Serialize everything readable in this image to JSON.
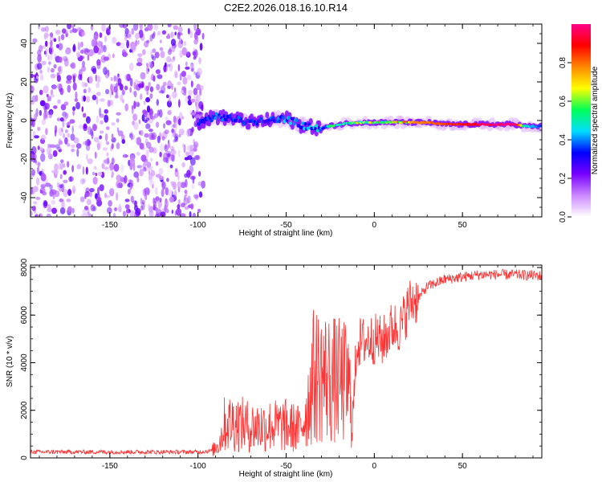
{
  "title": "C2E2.2026.018.16.10.R14",
  "chart_data": [
    {
      "type": "heatmap",
      "xlabel": "Height of straight line (km)",
      "ylabel": "Frequency (Hz)",
      "xlim": [
        -195,
        95
      ],
      "ylim": [
        -50,
        50
      ],
      "xticks": [
        -150,
        -100,
        -50,
        0,
        50
      ],
      "yticks": [
        -40,
        -20,
        0,
        20,
        40
      ],
      "xtick_labels": [
        "-150",
        "-100",
        "-50",
        "0",
        "50"
      ],
      "ytick_labels": [
        "-40",
        "-20",
        "0",
        "20",
        "40"
      ],
      "noise_region_x": [
        -195,
        -100
      ],
      "signal_track": [
        {
          "x": -100,
          "freq": -1,
          "amp": 0.3
        },
        {
          "x": -90,
          "freq": 2,
          "amp": 0.35
        },
        {
          "x": -80,
          "freq": 1,
          "amp": 0.35
        },
        {
          "x": -70,
          "freq": -1,
          "amp": 0.3
        },
        {
          "x": -60,
          "freq": 0,
          "amp": 0.35
        },
        {
          "x": -50,
          "freq": 1,
          "amp": 0.4
        },
        {
          "x": -40,
          "freq": -3,
          "amp": 0.4
        },
        {
          "x": -30,
          "freq": -4,
          "amp": 0.45
        },
        {
          "x": -20,
          "freq": -2,
          "amp": 0.5
        },
        {
          "x": -10,
          "freq": -1,
          "amp": 0.6
        },
        {
          "x": 0,
          "freq": -1,
          "amp": 0.65
        },
        {
          "x": 10,
          "freq": -1,
          "amp": 0.7
        },
        {
          "x": 20,
          "freq": -1,
          "amp": 0.75
        },
        {
          "x": 30,
          "freq": -1,
          "amp": 0.8
        },
        {
          "x": 40,
          "freq": -2,
          "amp": 0.85
        },
        {
          "x": 50,
          "freq": -2,
          "amp": 0.9
        },
        {
          "x": 60,
          "freq": -2,
          "amp": 0.95
        },
        {
          "x": 70,
          "freq": -2,
          "amp": 1.0
        },
        {
          "x": 80,
          "freq": -2,
          "amp": 1.0
        },
        {
          "x": 85,
          "freq": -3,
          "amp": 0.5
        },
        {
          "x": 95,
          "freq": -3,
          "amp": 0.35
        }
      ],
      "colorbar": {
        "label": "Normalized spectral amplitude",
        "range": [
          0,
          1
        ],
        "ticks": [
          0,
          0.2,
          0.4,
          0.6,
          0.8
        ],
        "tick_labels": [
          "0.0",
          "0.2",
          "0.4",
          "0.6",
          "0.8"
        ],
        "colors": [
          "#ffffff",
          "#cc88ff",
          "#7700ff",
          "#0000ff",
          "#00ddff",
          "#00ff55",
          "#ffff00",
          "#ff8800",
          "#ff0000",
          "#ff0088"
        ]
      }
    },
    {
      "type": "line",
      "xlabel": "Height of straight line (km)",
      "ylabel": "SNR (10 * v/v)",
      "xlim": [
        -195,
        95
      ],
      "ylim": [
        0,
        8100
      ],
      "xticks": [
        -150,
        -100,
        -50,
        0,
        50
      ],
      "yticks": [
        0,
        2000,
        4000,
        6000,
        8000
      ],
      "xtick_labels": [
        "-150",
        "-100",
        "-50",
        "0",
        "50"
      ],
      "ytick_labels": [
        "0",
        "2000",
        "4000",
        "6000",
        "8000"
      ],
      "line_color": "#ff3333",
      "series": [
        {
          "name": "SNR",
          "x": [
            -195,
            -150,
            -100,
            -92,
            -88,
            -85,
            -80,
            -70,
            -60,
            -50,
            -42,
            -38,
            -35,
            -30,
            -25,
            -20,
            -15,
            -12,
            -10,
            -5,
            0,
            5,
            10,
            15,
            20,
            25,
            30,
            40,
            50,
            60,
            70,
            80,
            95
          ],
          "y": [
            250,
            250,
            250,
            300,
            600,
            1400,
            1500,
            1300,
            1350,
            1350,
            1200,
            2100,
            3400,
            3500,
            3300,
            3200,
            3100,
            1800,
            4800,
            4900,
            5000,
            4900,
            5500,
            5500,
            6500,
            6700,
            7200,
            7500,
            7600,
            7700,
            7700,
            7700,
            7650
          ]
        }
      ]
    }
  ]
}
